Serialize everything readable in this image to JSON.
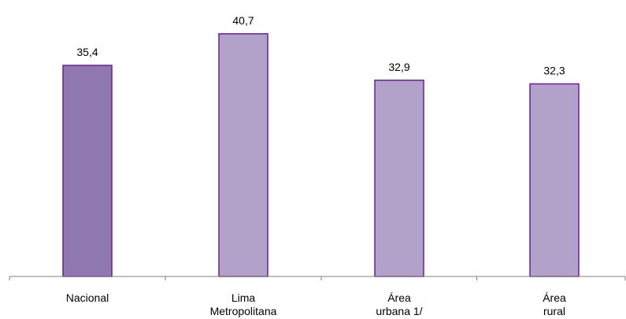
{
  "chart_data": {
    "type": "bar",
    "categories": [
      [
        "Nacional"
      ],
      [
        "Lima",
        "Metropolitana"
      ],
      [
        "Área",
        "urbana 1/"
      ],
      [
        "Área",
        "rural"
      ]
    ],
    "values": [
      35.4,
      40.7,
      32.9,
      32.3
    ],
    "value_labels": [
      "35,4",
      "40,7",
      "32,9",
      "32,3"
    ],
    "title": "",
    "xlabel": "",
    "ylabel": "",
    "ylim": [
      0,
      45
    ],
    "grid": false,
    "legend": "none",
    "colors": {
      "highlight_fill": "#8f78b0",
      "bar_fill": "#b2a1c9",
      "bar_stroke": "#6a1f9c",
      "axis": "#808080"
    },
    "highlight_index": 0
  }
}
